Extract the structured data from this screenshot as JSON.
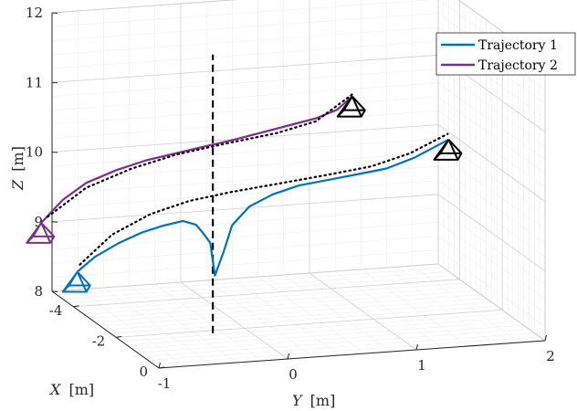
{
  "chart_data": {
    "type": "line",
    "projection": "3d",
    "grid": true,
    "legend_position": "top-right",
    "axes": {
      "x": {
        "label_var": "X",
        "label_unit": "[m]",
        "range": [
          -5,
          0
        ],
        "ticks": [
          -4,
          -2,
          0
        ],
        "tick_labels": [
          "-4",
          "-2",
          "0"
        ]
      },
      "y": {
        "label_var": "Y",
        "label_unit": "[m]",
        "range": [
          -1,
          2
        ],
        "ticks": [
          -1,
          0,
          1,
          2
        ],
        "tick_labels": [
          "-1",
          "0",
          "1",
          "2"
        ]
      },
      "z": {
        "label_var": "Z",
        "label_unit": "[m]",
        "range": [
          8,
          12
        ],
        "ticks": [
          8,
          9,
          10,
          11,
          12
        ],
        "tick_labels": [
          "8",
          "9",
          "10",
          "11",
          "12"
        ]
      }
    },
    "series": [
      {
        "name": "Trajectory 1",
        "color": "#0072BD",
        "points": [
          [
            -4.9,
            -0.82,
            8.28
          ],
          [
            -4.8,
            -0.7,
            8.5
          ],
          [
            -4.6,
            -0.55,
            8.72
          ],
          [
            -4.4,
            -0.4,
            8.9
          ],
          [
            -4.2,
            -0.28,
            9.02
          ],
          [
            -4.0,
            -0.15,
            9.12
          ],
          [
            -3.8,
            -0.08,
            9.1
          ],
          [
            -3.6,
            -0.05,
            9.0
          ],
          [
            -3.5,
            -0.02,
            8.9
          ],
          [
            -3.4,
            0.0,
            8.45
          ],
          [
            -3.3,
            0.05,
            8.8
          ],
          [
            -3.2,
            0.1,
            9.2
          ],
          [
            -3.0,
            0.2,
            9.5
          ],
          [
            -2.8,
            0.35,
            9.7
          ],
          [
            -2.6,
            0.52,
            9.85
          ],
          [
            -2.4,
            0.72,
            9.95
          ],
          [
            -2.2,
            0.92,
            10.05
          ],
          [
            -2.0,
            1.1,
            10.15
          ],
          [
            -1.9,
            1.3,
            10.3
          ],
          [
            -1.8,
            1.55,
            10.55
          ]
        ]
      },
      {
        "name": "Trajectory 2",
        "color": "#7E2F8E",
        "points": [
          [
            -4.9,
            -1.1,
            9.02
          ],
          [
            -4.8,
            -0.95,
            9.35
          ],
          [
            -4.6,
            -0.8,
            9.62
          ],
          [
            -4.4,
            -0.6,
            9.82
          ],
          [
            -4.2,
            -0.4,
            9.98
          ],
          [
            -4.0,
            -0.2,
            10.1
          ],
          [
            -3.8,
            0.0,
            10.22
          ],
          [
            -3.6,
            0.15,
            10.32
          ],
          [
            -3.4,
            0.35,
            10.45
          ],
          [
            -3.2,
            0.55,
            10.58
          ],
          [
            -3.0,
            0.72,
            10.7
          ],
          [
            -2.8,
            0.85,
            10.85
          ],
          [
            -2.7,
            0.95,
            11.05
          ]
        ]
      }
    ],
    "reference_curves": [
      {
        "style": "dotted",
        "color": "#000000",
        "points": [
          [
            -4.9,
            -0.8,
            8.38
          ],
          [
            -4.6,
            -0.6,
            8.85
          ],
          [
            -4.3,
            -0.35,
            9.18
          ],
          [
            -4.0,
            -0.1,
            9.4
          ],
          [
            -3.6,
            0.15,
            9.58
          ],
          [
            -3.2,
            0.45,
            9.75
          ],
          [
            -2.8,
            0.75,
            9.92
          ],
          [
            -2.4,
            1.05,
            10.1
          ],
          [
            -2.1,
            1.3,
            10.32
          ],
          [
            -1.85,
            1.55,
            10.62
          ]
        ]
      },
      {
        "style": "dotted",
        "color": "#000000",
        "points": [
          [
            -4.9,
            -1.05,
            9.1
          ],
          [
            -4.6,
            -0.8,
            9.55
          ],
          [
            -4.3,
            -0.5,
            9.85
          ],
          [
            -4.0,
            -0.2,
            10.08
          ],
          [
            -3.6,
            0.1,
            10.28
          ],
          [
            -3.2,
            0.45,
            10.48
          ],
          [
            -2.9,
            0.7,
            10.68
          ],
          [
            -2.65,
            0.95,
            11.1
          ]
        ]
      }
    ],
    "vertical_line": {
      "style": "dashed",
      "color": "#000000",
      "x": -3.5,
      "y": 0.0,
      "z_range": [
        7.6,
        11.6
      ]
    },
    "markers": [
      {
        "shape": "pyramid",
        "color": "#0072BD",
        "at": [
          -4.9,
          -0.82,
          8.28
        ]
      },
      {
        "shape": "pyramid",
        "color": "#7E2F8E",
        "at": [
          -4.9,
          -1.1,
          9.02
        ]
      },
      {
        "shape": "pyramid",
        "color": "#000000",
        "at": [
          -1.8,
          1.55,
          10.55
        ]
      },
      {
        "shape": "pyramid",
        "color": "#000000",
        "at": [
          -2.7,
          0.95,
          11.05
        ]
      }
    ]
  }
}
